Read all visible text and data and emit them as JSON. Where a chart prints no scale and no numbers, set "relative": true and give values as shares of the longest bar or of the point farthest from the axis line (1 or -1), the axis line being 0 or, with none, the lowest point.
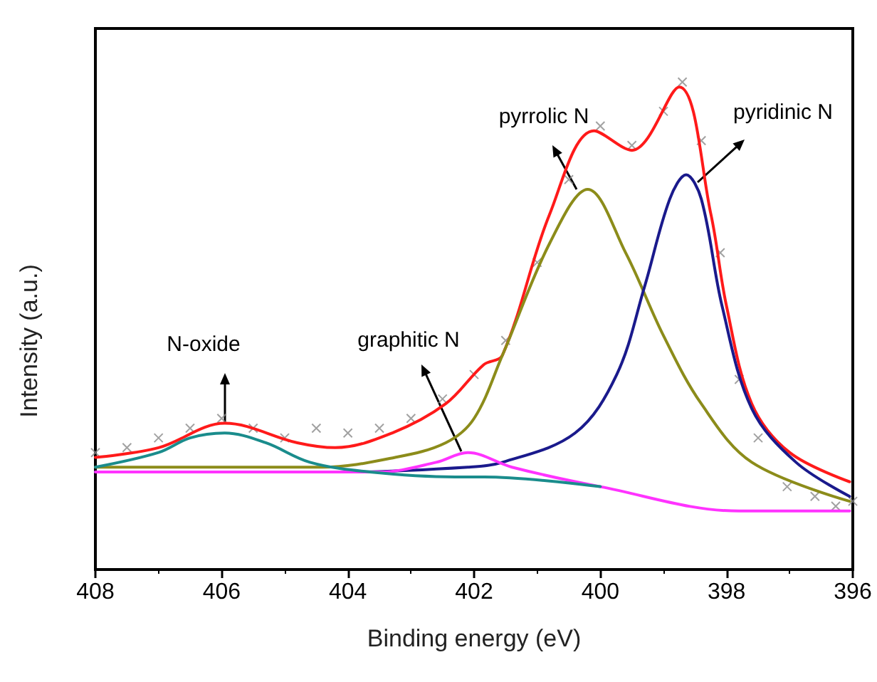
{
  "chart_data": {
    "type": "line",
    "xlabel": "Binding energy (eV)",
    "ylabel": "Intensity (a.u.)",
    "relative": true,
    "xlim": [
      408,
      396
    ],
    "xticks": [
      408,
      406,
      404,
      402,
      400,
      398,
      396
    ],
    "grid": false,
    "line_style": "solid",
    "marker": "none",
    "annotations": [
      "N-oxide",
      "graphitic N",
      "pyrrolic N",
      "pyridinic N"
    ],
    "series": [
      {
        "type": "scatter",
        "marker": "cross",
        "color": "#8a8a8a",
        "x": [
          408,
          407.5,
          407,
          406.5,
          406,
          405.5,
          405,
          404.5,
          404,
          403.5,
          403,
          402.5,
          402,
          401.5,
          401,
          400.5,
          400,
          399.5,
          399,
          398.7,
          398.4,
          398.1,
          397.8,
          397.5,
          397.04,
          396.6,
          396.27,
          396
        ],
        "values": [
          0.24,
          0.25,
          0.27,
          0.29,
          0.31,
          0.29,
          0.27,
          0.29,
          0.28,
          0.29,
          0.31,
          0.35,
          0.4,
          0.47,
          0.63,
          0.8,
          0.91,
          0.87,
          0.94,
          1.0,
          0.88,
          0.65,
          0.39,
          0.27,
          0.17,
          0.15,
          0.13,
          0.14
        ]
      },
      {
        "color": "#ff1a1a",
        "x": [
          408,
          407,
          405.95,
          404.8,
          404.2,
          403.3,
          402.45,
          401.85,
          401.55,
          400.8,
          400.1,
          399.5,
          398.75,
          398.25,
          398,
          397.6,
          397,
          396.05
        ],
        "values": [
          0.23,
          0.25,
          0.3,
          0.26,
          0.25,
          0.28,
          0.34,
          0.42,
          0.44,
          0.73,
          0.9,
          0.86,
          0.99,
          0.73,
          0.54,
          0.34,
          0.24,
          0.18
        ]
      },
      {
        "color": "#8c8c1a",
        "x": [
          408,
          404.4,
          403.25,
          402.45,
          402,
          401.55,
          400.8,
          400.2,
          399.6,
          399,
          398.4,
          397.6,
          396.05
        ],
        "values": [
          0.21,
          0.21,
          0.23,
          0.26,
          0.31,
          0.44,
          0.67,
          0.78,
          0.65,
          0.48,
          0.34,
          0.22,
          0.14
        ]
      },
      {
        "color": "#1a1a8c",
        "x": [
          408,
          404,
          402.1,
          401.55,
          400.4,
          399.74,
          399.3,
          398.9,
          398.64,
          398.4,
          398.07,
          397.6,
          396.9,
          396.05
        ],
        "values": [
          0.2,
          0.2,
          0.21,
          0.22,
          0.28,
          0.4,
          0.58,
          0.76,
          0.81,
          0.76,
          0.54,
          0.33,
          0.22,
          0.15
        ]
      },
      {
        "color": "#ff33ff",
        "x": [
          408,
          405,
          403.5,
          402.6,
          402.1,
          401.4,
          400,
          397.8,
          396.05
        ],
        "values": [
          0.2,
          0.2,
          0.2,
          0.22,
          0.24,
          0.21,
          0.17,
          0.12,
          0.12
        ]
      },
      {
        "color": "#1a8c8c",
        "x": [
          408,
          407,
          406.5,
          405.95,
          405.3,
          404.6,
          403.65,
          402.3,
          401.84,
          400
        ],
        "values": [
          0.21,
          0.24,
          0.27,
          0.28,
          0.26,
          0.22,
          0.2,
          0.19,
          0.19,
          0.17
        ]
      }
    ]
  }
}
